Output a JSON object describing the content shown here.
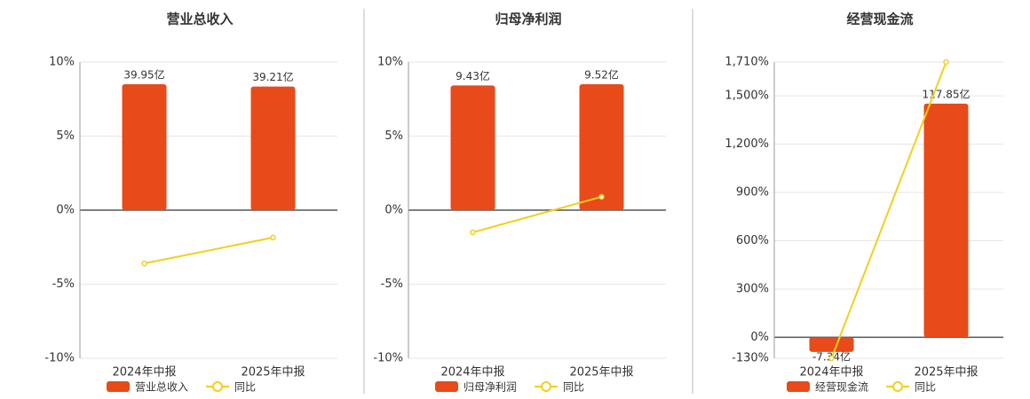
{
  "chart_data": [
    {
      "type": "bar",
      "title": "营业总收入",
      "categories": [
        "2024年中报",
        "2025年中报"
      ],
      "series": [
        {
          "name": "营业总收入",
          "type": "bar",
          "axis": "y2",
          "color": "#e84a1a",
          "values": [
            39.95,
            39.21
          ],
          "value_labels": [
            "39.95亿",
            "39.21亿"
          ]
        },
        {
          "name": "同比",
          "type": "line",
          "axis": "y",
          "color": "#f2cf1d",
          "values": [
            -3.6,
            -1.85
          ]
        }
      ],
      "ylim": [
        -10,
        10
      ],
      "yticks": [
        {
          "value": -10,
          "label": "-10%"
        },
        {
          "value": -5,
          "label": "-5%"
        },
        {
          "value": 0,
          "label": "0%"
        },
        {
          "value": 5,
          "label": "5%"
        },
        {
          "value": 10,
          "label": "10%"
        }
      ],
      "y2lim": [
        -47,
        47
      ],
      "grid": true
    },
    {
      "type": "bar",
      "title": "归母净利润",
      "categories": [
        "2024年中报",
        "2025年中报"
      ],
      "series": [
        {
          "name": "归母净利润",
          "type": "bar",
          "axis": "y2",
          "color": "#e84a1a",
          "values": [
            9.43,
            9.52
          ],
          "value_labels": [
            "9.43亿",
            "9.52亿"
          ]
        },
        {
          "name": "同比",
          "type": "line",
          "axis": "y",
          "color": "#f2cf1d",
          "values": [
            -1.5,
            0.9
          ]
        }
      ],
      "ylim": [
        -10,
        10
      ],
      "yticks": [
        {
          "value": -10,
          "label": "-10%"
        },
        {
          "value": -5,
          "label": "-5%"
        },
        {
          "value": 0,
          "label": "0%"
        },
        {
          "value": 5,
          "label": "5%"
        },
        {
          "value": 10,
          "label": "10%"
        }
      ],
      "y2lim": [
        -11.2,
        11.2
      ],
      "grid": true
    },
    {
      "type": "bar",
      "title": "经营现金流",
      "categories": [
        "2024年中报",
        "2025年中报"
      ],
      "series": [
        {
          "name": "经营现金流",
          "type": "bar",
          "axis": "y2",
          "color": "#e84a1a",
          "values": [
            -7.34,
            117.85
          ],
          "value_labels": [
            "-7.34亿",
            "117.85亿"
          ]
        },
        {
          "name": "同比",
          "type": "line",
          "axis": "y",
          "color": "#f2cf1d",
          "values": [
            -130,
            1710
          ]
        }
      ],
      "ylim": [
        -130,
        1710
      ],
      "yticks": [
        {
          "value": -130,
          "label": "-130%"
        },
        {
          "value": 0,
          "label": "0%"
        },
        {
          "value": 300,
          "label": "300%"
        },
        {
          "value": 600,
          "label": "600%"
        },
        {
          "value": 900,
          "label": "900%"
        },
        {
          "value": 1200,
          "label": "1,200%"
        },
        {
          "value": 1500,
          "label": "1,500%"
        },
        {
          "value": 1710,
          "label": "1,710%"
        }
      ],
      "y2lim": [
        -10.55,
        138.8
      ],
      "grid": true
    }
  ]
}
